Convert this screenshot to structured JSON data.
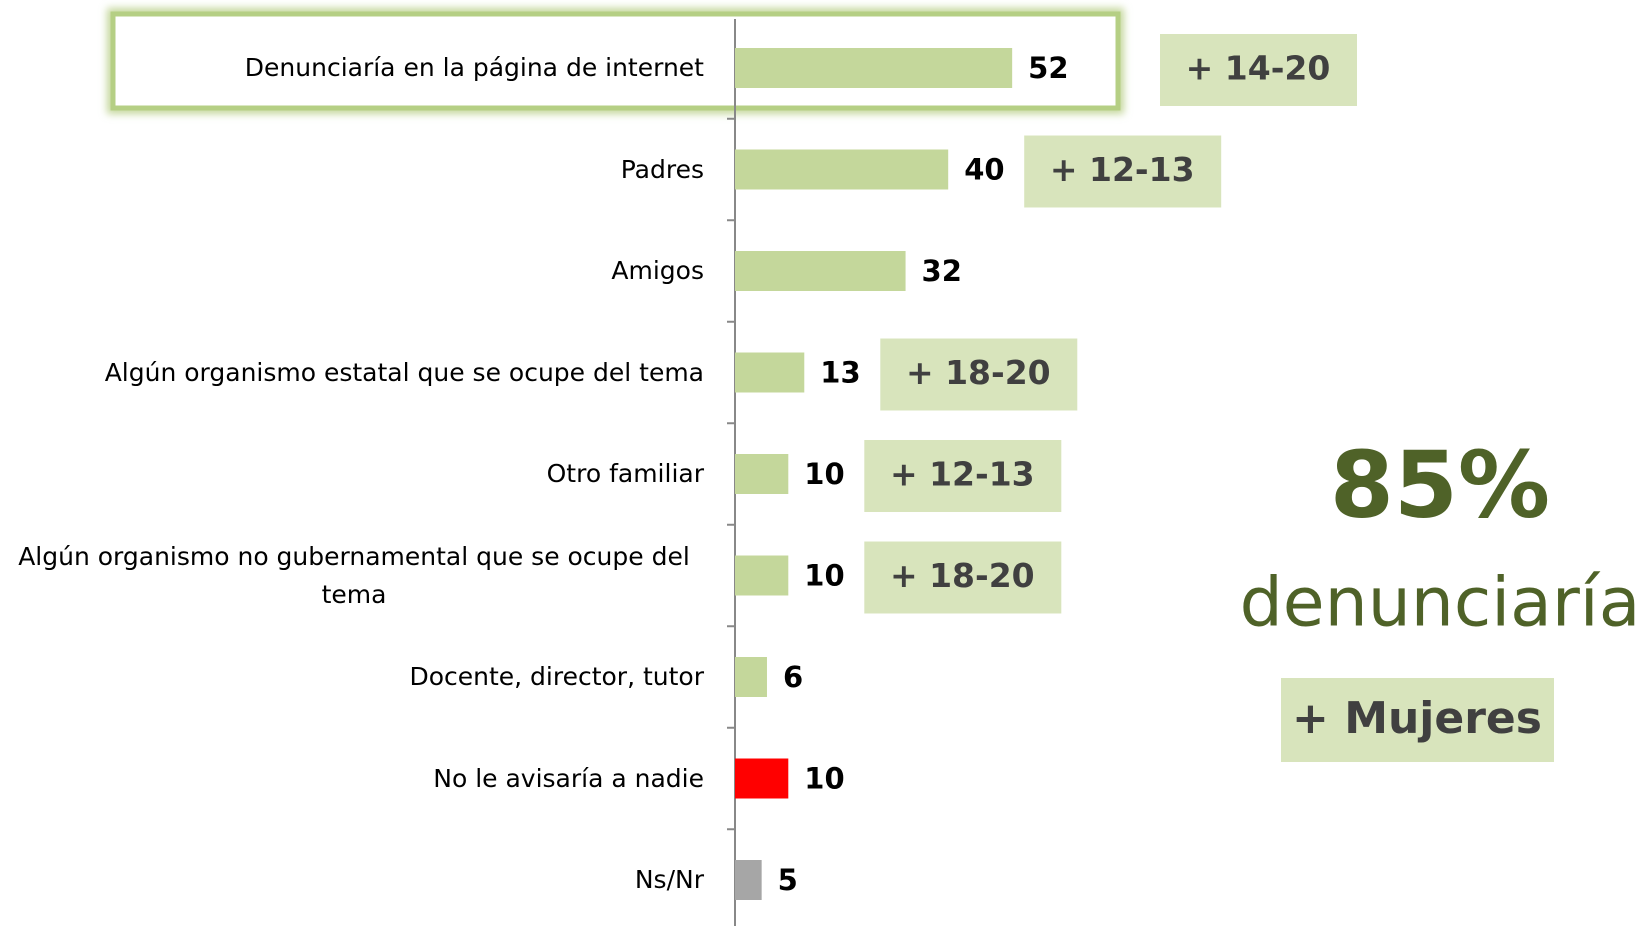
{
  "chart_data": {
    "type": "bar",
    "orientation": "horizontal",
    "categories": [
      "Denunciaría en la página de internet",
      "Padres",
      "Amigos",
      "Algún organismo estatal que se ocupe del tema",
      "Otro familiar",
      "Algún organismo no gubernamental que se ocupe del tema",
      "Docente, director, tutor",
      "No le avisaría a nadie",
      "Ns/Nr"
    ],
    "values": [
      52,
      40,
      32,
      13,
      10,
      10,
      6,
      10,
      5
    ],
    "colors": [
      "#c4d79b",
      "#c4d79b",
      "#c4d79b",
      "#c4d79b",
      "#c4d79b",
      "#c4d79b",
      "#c4d79b",
      "#ff0000",
      "#a6a6a6"
    ],
    "notes": [
      "+ 14-20",
      "+ 12-13",
      null,
      "+ 18-20",
      "+ 12-13",
      "+ 18-20",
      null,
      null,
      null
    ],
    "callout": {
      "headline": "85%",
      "text": "denunciaría",
      "note": "+ Mujeres"
    }
  }
}
